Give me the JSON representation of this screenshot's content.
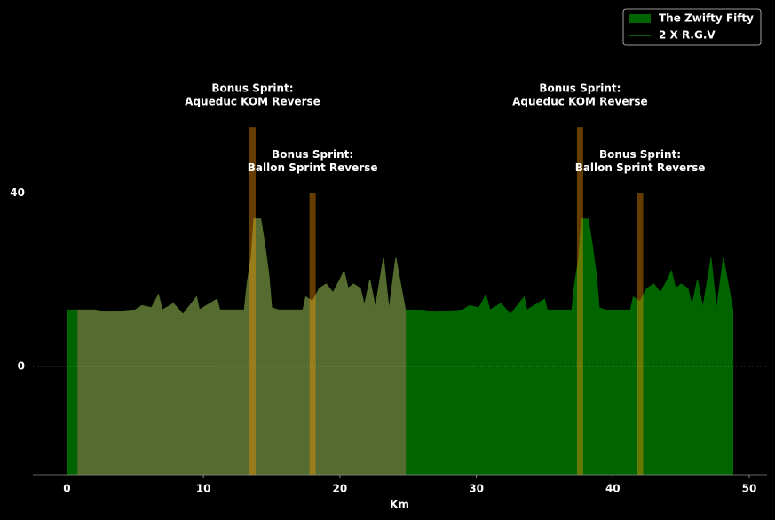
{
  "chart_data": {
    "type": "area",
    "xlabel": "Km",
    "xlim": [
      -2.5,
      51.3
    ],
    "ylim": [
      -25,
      84.5
    ],
    "xticks": [
      0,
      10,
      20,
      30,
      40,
      50
    ],
    "yticks": [
      0,
      40
    ],
    "grid": true,
    "legend": "upper right",
    "series": [
      {
        "name": "The Zwifty Fifty",
        "color": "#006400",
        "legend_kind": "patch",
        "x": [
          0,
          0.8,
          2,
          3,
          5,
          5.5,
          6.2,
          6.7,
          7,
          7.8,
          8.5,
          9.5,
          9.7,
          11,
          11.2,
          13,
          13.2,
          13.5,
          13.7,
          14.2,
          14.5,
          14.8,
          15,
          15.5,
          17.3,
          17.5,
          18,
          18.5,
          19,
          19.5,
          20,
          20.3,
          20.6,
          21,
          21.5,
          21.8,
          22.2,
          22.6,
          23.2,
          23.6,
          24.1,
          24.8,
          26,
          27,
          29,
          29.5,
          30.2,
          30.7,
          31,
          31.8,
          32.5,
          33.5,
          33.7,
          35,
          35.2,
          37,
          37.2,
          37.5,
          37.7,
          38.2,
          38.5,
          38.8,
          39,
          39.5,
          41.3,
          41.5,
          42,
          42.5,
          43,
          43.5,
          44,
          44.3,
          44.6,
          45,
          45.5,
          45.8,
          46.2,
          46.6,
          47.2,
          47.6,
          48.1,
          48.8
        ],
        "values": [
          13,
          13,
          13,
          12.5,
          13,
          14,
          13.5,
          16.5,
          13,
          14.5,
          12,
          16,
          13,
          15.5,
          13,
          13,
          19,
          25,
          34,
          34,
          28,
          21,
          13.5,
          13,
          13,
          16,
          15,
          18,
          19,
          17,
          20,
          22,
          18,
          19,
          18,
          14,
          20,
          13.5,
          25,
          13,
          25,
          13,
          13,
          12.5,
          13,
          14,
          13.5,
          16.5,
          13,
          14.5,
          12,
          16,
          13,
          15.5,
          13,
          13,
          19,
          25,
          34,
          34,
          28,
          21,
          13.5,
          13,
          13,
          16,
          15,
          18,
          19,
          17,
          20,
          22,
          18,
          19,
          18,
          14,
          20,
          13.5,
          25,
          13,
          25,
          13
        ]
      },
      {
        "name": "2 X R.G.V",
        "color": "#556b2f",
        "legend_color": "#1e7a1e",
        "legend_kind": "line",
        "x": [
          0.8,
          2,
          3,
          5,
          5.5,
          6.2,
          6.7,
          7,
          7.8,
          8.5,
          9.5,
          9.7,
          11,
          11.2,
          13,
          13.2,
          13.5,
          13.7,
          14.2,
          14.5,
          14.8,
          15,
          15.5,
          17.3,
          17.5,
          18,
          18.5,
          19,
          19.5,
          20,
          20.3,
          20.6,
          21,
          21.5,
          21.8,
          22.2,
          22.6,
          23.2,
          23.6,
          24.1,
          24.8
        ],
        "values": [
          13,
          13,
          12.5,
          13,
          14,
          13.5,
          16.5,
          13,
          14.5,
          12,
          16,
          13,
          15.5,
          13,
          13,
          19,
          25,
          34,
          34,
          28,
          21,
          13.5,
          13,
          13,
          16,
          15,
          18,
          19,
          17,
          20,
          22,
          18,
          19,
          18,
          14,
          20,
          13.5,
          25,
          13,
          25,
          13
        ]
      }
    ],
    "sprints": [
      {
        "x": 13.6,
        "height": 55.2,
        "label": [
          "Bonus Sprint:",
          "Aqueduc KOM Reverse"
        ]
      },
      {
        "x": 18.0,
        "height": 40,
        "label": [
          "Bonus Sprint:",
          "Ballon Sprint Reverse"
        ]
      },
      {
        "x": 37.6,
        "height": 55.2,
        "label": [
          "Bonus Sprint:",
          "Aqueduc KOM Reverse"
        ]
      },
      {
        "x": 42.0,
        "height": 40,
        "label": [
          "Bonus Sprint:",
          "Ballon Sprint Reverse"
        ]
      }
    ],
    "sprint_color": "#ff9900"
  }
}
